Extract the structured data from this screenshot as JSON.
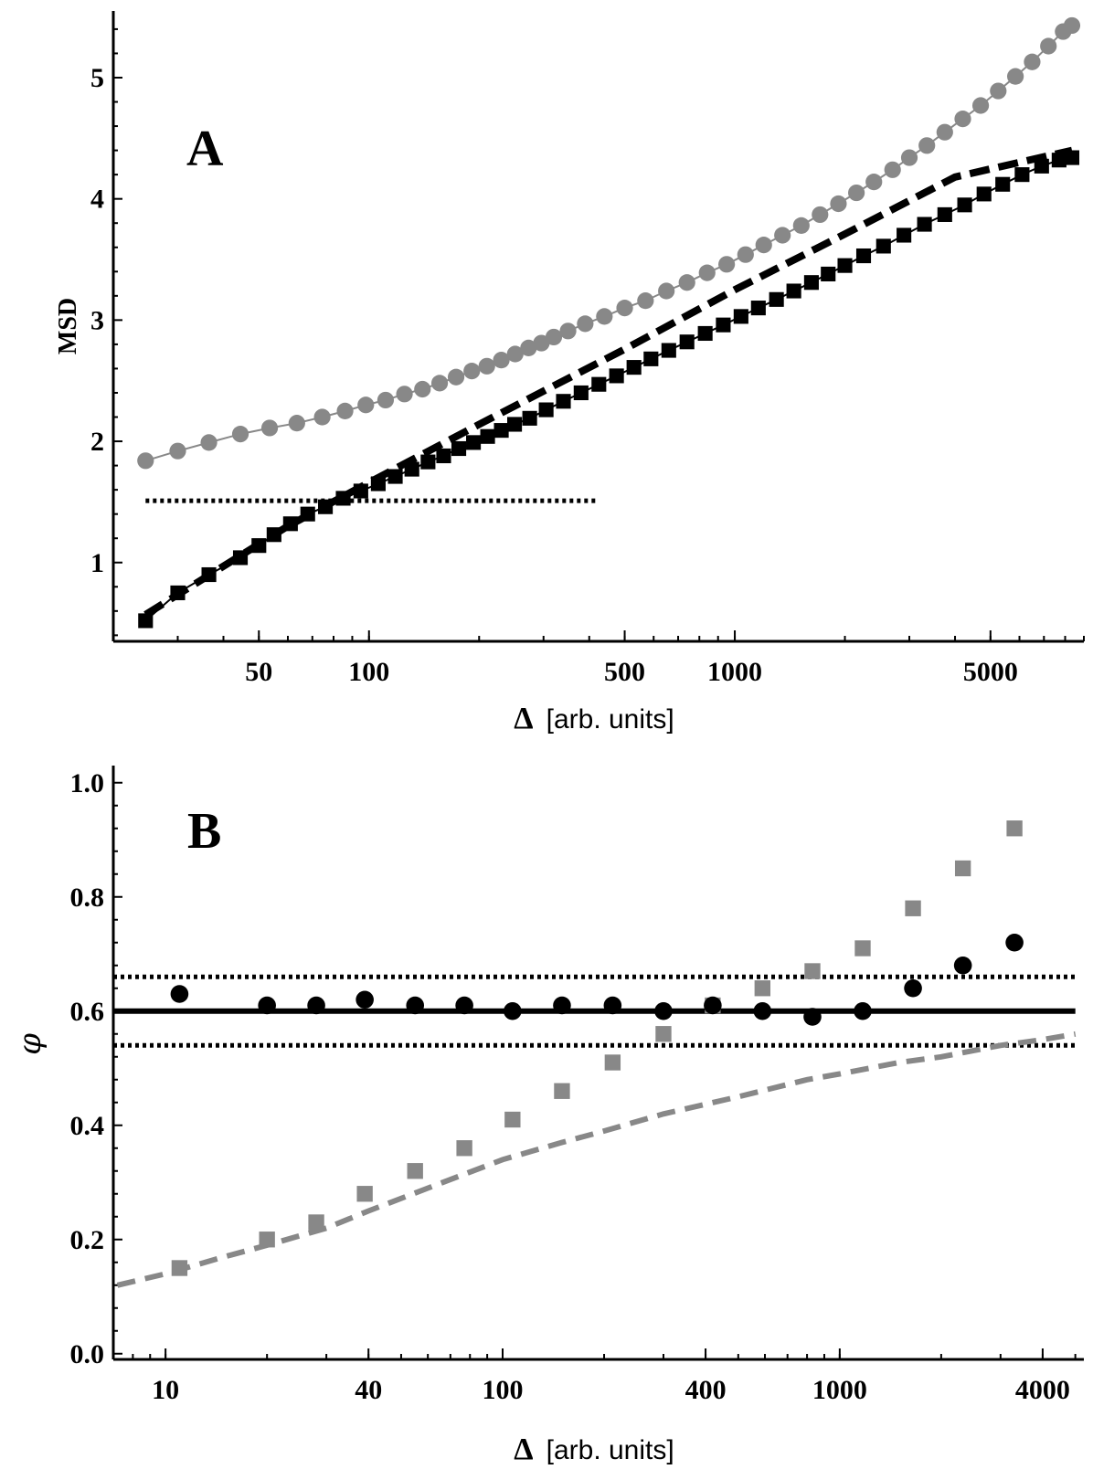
{
  "chart_data": [
    {
      "panel": "A",
      "type": "scatter",
      "xscale": "log",
      "xlim": [
        20,
        9000
      ],
      "ylim": [
        0.35,
        5.55
      ],
      "xlabel_symbol": "Δ",
      "xlabel_units": "[arb. units]",
      "ylabel": "MSD",
      "xticks": [
        50,
        100,
        500,
        1000,
        5000
      ],
      "xtick_labels": [
        "50",
        "100",
        "500",
        "1000",
        "5000"
      ],
      "yticks": [
        1,
        2,
        3,
        4,
        5
      ],
      "ytick_labels": [
        "1",
        "2",
        "3",
        "4",
        "5"
      ],
      "series": [
        {
          "name": "gray circles",
          "marker": "circle",
          "color": "#888888",
          "x": [
            24.5,
            30,
            36.5,
            44.5,
            53.5,
            63.5,
            74.5,
            86,
            98,
            111,
            125,
            140,
            156,
            173,
            191,
            210,
            230,
            251,
            273,
            296,
            320,
            350,
            390,
            440,
            500,
            570,
            650,
            740,
            840,
            950,
            1070,
            1200,
            1350,
            1520,
            1710,
            1920,
            2150,
            2400,
            2700,
            3000,
            3350,
            3750,
            4200,
            4700,
            5250,
            5850,
            6500,
            7200,
            7900,
            8350
          ],
          "y": [
            1.84,
            1.92,
            1.99,
            2.06,
            2.11,
            2.15,
            2.2,
            2.25,
            2.3,
            2.34,
            2.39,
            2.43,
            2.48,
            2.53,
            2.58,
            2.62,
            2.67,
            2.72,
            2.77,
            2.81,
            2.86,
            2.91,
            2.97,
            3.03,
            3.1,
            3.16,
            3.24,
            3.31,
            3.39,
            3.46,
            3.54,
            3.62,
            3.7,
            3.78,
            3.87,
            3.96,
            4.05,
            4.14,
            4.24,
            4.34,
            4.44,
            4.55,
            4.66,
            4.77,
            4.89,
            5.01,
            5.13,
            5.26,
            5.38,
            5.43
          ]
        },
        {
          "name": "black squares",
          "marker": "square",
          "color": "#000000",
          "x": [
            24.5,
            30,
            36.5,
            44.5,
            50,
            55,
            61,
            68,
            76,
            85,
            95,
            106,
            118,
            131,
            145,
            160,
            176,
            193,
            211,
            230,
            250,
            275,
            305,
            340,
            380,
            425,
            475,
            530,
            590,
            660,
            740,
            830,
            930,
            1040,
            1160,
            1300,
            1450,
            1620,
            1800,
            2000,
            2250,
            2550,
            2900,
            3300,
            3750,
            4250,
            4800,
            5400,
            6100,
            6900,
            7700,
            8350
          ],
          "y": [
            0.52,
            0.75,
            0.9,
            1.04,
            1.14,
            1.23,
            1.32,
            1.4,
            1.46,
            1.53,
            1.59,
            1.65,
            1.71,
            1.77,
            1.83,
            1.88,
            1.94,
            1.99,
            2.04,
            2.09,
            2.14,
            2.19,
            2.26,
            2.33,
            2.4,
            2.47,
            2.54,
            2.61,
            2.68,
            2.75,
            2.82,
            2.89,
            2.96,
            3.03,
            3.1,
            3.17,
            3.24,
            3.31,
            3.38,
            3.45,
            3.53,
            3.61,
            3.7,
            3.79,
            3.87,
            3.95,
            4.04,
            4.12,
            4.2,
            4.27,
            4.32,
            4.34
          ]
        },
        {
          "name": "black dashed line",
          "style": "dashed",
          "color": "#000000",
          "x": [
            24.5,
            60,
            100,
            200,
            500,
            1000,
            2000,
            4000,
            8350
          ],
          "y": [
            0.57,
            1.3,
            1.66,
            2.14,
            2.76,
            3.25,
            3.71,
            4.18,
            4.4
          ]
        },
        {
          "name": "black dotted line",
          "style": "dotted",
          "color": "#000000",
          "x": [
            24.5,
            420
          ],
          "y": [
            1.51,
            1.51
          ]
        }
      ],
      "annotation": "A"
    },
    {
      "panel": "B",
      "type": "scatter",
      "xscale": "log",
      "xlim": [
        7,
        5300
      ],
      "ylim": [
        -0.01,
        1.03
      ],
      "xlabel_symbol": "Δ",
      "xlabel_units": "[arb. units]",
      "ylabel": "φ",
      "xticks": [
        10,
        40,
        100,
        400,
        1000,
        4000
      ],
      "xtick_labels": [
        "10",
        "40",
        "100",
        "400",
        "1000",
        "4000"
      ],
      "yticks": [
        0.0,
        0.2,
        0.4,
        0.6,
        0.8,
        1.0
      ],
      "ytick_labels": [
        "0.0",
        "0.2",
        "0.4",
        "0.6",
        "0.8",
        "1.0"
      ],
      "series": [
        {
          "name": "gray squares",
          "marker": "square",
          "color": "#888888",
          "x": [
            11,
            20,
            28,
            39,
            55,
            77,
            107,
            150,
            212,
            300,
            420,
            590,
            830,
            1170,
            1650,
            2320,
            3300
          ],
          "y": [
            0.15,
            0.2,
            0.23,
            0.28,
            0.32,
            0.36,
            0.41,
            0.46,
            0.51,
            0.56,
            0.61,
            0.64,
            0.67,
            0.71,
            0.78,
            0.85,
            0.92
          ]
        },
        {
          "name": "black circles",
          "marker": "circle",
          "color": "#000000",
          "x": [
            11,
            20,
            28,
            39,
            55,
            77,
            107,
            150,
            212,
            300,
            420,
            590,
            830,
            1170,
            1650,
            2320,
            3300
          ],
          "y": [
            0.63,
            0.61,
            0.61,
            0.62,
            0.61,
            0.61,
            0.6,
            0.61,
            0.61,
            0.6,
            0.61,
            0.6,
            0.59,
            0.6,
            0.64,
            0.68,
            0.72
          ]
        },
        {
          "name": "black solid line",
          "style": "solid",
          "color": "#000000",
          "x": [
            7,
            5000
          ],
          "y": [
            0.6,
            0.6
          ]
        },
        {
          "name": "black dotted upper",
          "style": "dotted",
          "color": "#000000",
          "x": [
            7,
            5000
          ],
          "y": [
            0.66,
            0.66
          ]
        },
        {
          "name": "black dotted lower",
          "style": "dotted",
          "color": "#000000",
          "x": [
            7,
            5000
          ],
          "y": [
            0.54,
            0.54
          ]
        },
        {
          "name": "gray dashed curve",
          "style": "dashed",
          "color": "#888888",
          "x": [
            7.2,
            10,
            15,
            20,
            30,
            40,
            60,
            100,
            150,
            200,
            300,
            500,
            800,
            1000,
            1500,
            2000,
            3000,
            4000,
            5000
          ],
          "y": [
            0.12,
            0.14,
            0.17,
            0.19,
            0.22,
            0.25,
            0.29,
            0.34,
            0.37,
            0.39,
            0.42,
            0.45,
            0.48,
            0.49,
            0.51,
            0.52,
            0.54,
            0.55,
            0.56
          ]
        }
      ],
      "annotation": "B"
    }
  ]
}
